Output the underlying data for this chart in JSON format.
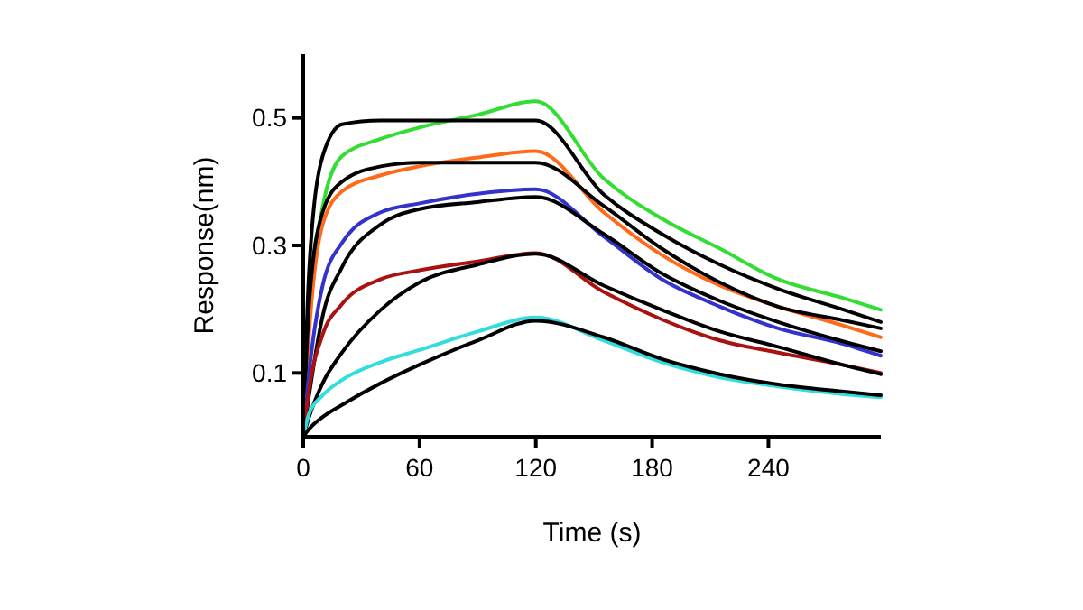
{
  "chart_data": {
    "type": "line",
    "xlabel": "Time (s)",
    "ylabel": "Response(nm)",
    "xlim": [
      0,
      298
    ],
    "ylim": [
      0,
      0.6
    ],
    "xticks": [
      0,
      60,
      120,
      180,
      240
    ],
    "yticks": [
      0.1,
      0.3,
      0.5
    ],
    "grid": false,
    "marker": "none",
    "line_style": "solid",
    "x": [
      0,
      3,
      10,
      20,
      40,
      60,
      90,
      120,
      155,
      185,
      215,
      245,
      278,
      298
    ],
    "series": [
      {
        "color": "#33dd33",
        "values": [
          0,
          0.2,
          0.36,
          0.44,
          0.467,
          0.485,
          0.505,
          0.526,
          0.405,
          0.342,
          0.295,
          0.247,
          0.218,
          0.199
        ]
      },
      {
        "color": "#000000",
        "values": [
          0,
          0.26,
          0.44,
          0.49,
          0.496,
          0.496,
          0.496,
          0.496,
          0.38,
          0.318,
          0.27,
          0.232,
          0.2,
          0.18
        ]
      },
      {
        "color": "#ff6a1a",
        "values": [
          0,
          0.16,
          0.333,
          0.385,
          0.41,
          0.424,
          0.438,
          0.448,
          0.352,
          0.285,
          0.237,
          0.204,
          0.175,
          0.156
        ]
      },
      {
        "color": "#000000",
        "values": [
          0,
          0.208,
          0.352,
          0.4,
          0.424,
          0.43,
          0.43,
          0.43,
          0.362,
          0.295,
          0.242,
          0.204,
          0.183,
          0.17
        ]
      },
      {
        "color": "#3333cc",
        "values": [
          0,
          0.1,
          0.237,
          0.304,
          0.352,
          0.366,
          0.381,
          0.388,
          0.314,
          0.247,
          0.204,
          0.17,
          0.146,
          0.127
        ]
      },
      {
        "color": "#000000",
        "values": [
          0,
          0.065,
          0.189,
          0.266,
          0.333,
          0.357,
          0.368,
          0.376,
          0.318,
          0.256,
          0.213,
          0.18,
          0.15,
          0.134
        ]
      },
      {
        "color": "#aa1111",
        "values": [
          0,
          0.074,
          0.16,
          0.208,
          0.247,
          0.261,
          0.275,
          0.288,
          0.227,
          0.184,
          0.151,
          0.132,
          0.113,
          0.1
        ]
      },
      {
        "color": "#000000",
        "values": [
          0,
          0.031,
          0.084,
          0.132,
          0.199,
          0.242,
          0.27,
          0.287,
          0.237,
          0.199,
          0.165,
          0.141,
          0.113,
          0.098
        ]
      },
      {
        "color": "#33dddd",
        "values": [
          0,
          0.036,
          0.065,
          0.089,
          0.117,
          0.136,
          0.165,
          0.187,
          0.151,
          0.117,
          0.093,
          0.079,
          0.067,
          0.062
        ]
      },
      {
        "color": "#000000",
        "values": [
          0,
          0.012,
          0.031,
          0.05,
          0.084,
          0.113,
          0.151,
          0.182,
          0.156,
          0.122,
          0.098,
          0.082,
          0.071,
          0.065
        ]
      }
    ]
  }
}
